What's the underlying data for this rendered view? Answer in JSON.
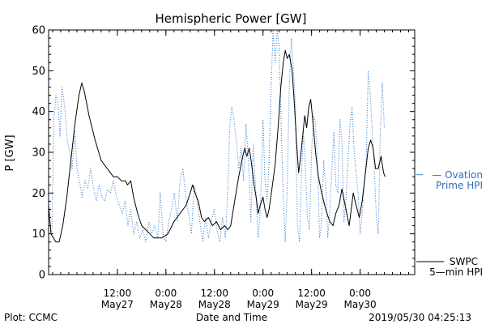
{
  "chart_data": {
    "type": "line",
    "title": "Hemispheric Power [GW]",
    "ylabel": "P [GW]",
    "xlabel": "Date and Time",
    "ylim": [
      0,
      60
    ],
    "xlim_hours": [
      0,
      90.5
    ],
    "x_unit": "hours since 2019/05/26 19:00 UT",
    "yticks": [
      0,
      10,
      20,
      30,
      40,
      50,
      60
    ],
    "xticks": [
      {
        "x": 17,
        "time": "12:00",
        "date": "May27"
      },
      {
        "x": 29,
        "time": "0:00",
        "date": "May28"
      },
      {
        "x": 41,
        "time": "12:00",
        "date": "May28"
      },
      {
        "x": 53,
        "time": "0:00",
        "date": "May29"
      },
      {
        "x": 65,
        "time": "12:00",
        "date": "May29"
      },
      {
        "x": 77,
        "time": "0:00",
        "date": "May30"
      }
    ],
    "series": [
      {
        "name": "SWPC 5-min HPI",
        "style": "solid",
        "color": "#000000",
        "points": [
          [
            0,
            17
          ],
          [
            0.6,
            10
          ],
          [
            1.2,
            9
          ],
          [
            1.8,
            8
          ],
          [
            2.6,
            8
          ],
          [
            3.5,
            12
          ],
          [
            4.5,
            19
          ],
          [
            5.5,
            28
          ],
          [
            6.5,
            37
          ],
          [
            7.5,
            44
          ],
          [
            8.2,
            47
          ],
          [
            8.8,
            45
          ],
          [
            10,
            39
          ],
          [
            11.5,
            33
          ],
          [
            13,
            28
          ],
          [
            14.5,
            26
          ],
          [
            16,
            24
          ],
          [
            17,
            24
          ],
          [
            18,
            23
          ],
          [
            19,
            23
          ],
          [
            19.5,
            22
          ],
          [
            20.3,
            23
          ],
          [
            21,
            19
          ],
          [
            22,
            15
          ],
          [
            23,
            12
          ],
          [
            24,
            11
          ],
          [
            25,
            10
          ],
          [
            26,
            9
          ],
          [
            28,
            9
          ],
          [
            29.5,
            10
          ],
          [
            31,
            13
          ],
          [
            32.5,
            15
          ],
          [
            34,
            17
          ],
          [
            35,
            20
          ],
          [
            35.6,
            22
          ],
          [
            36.2,
            20
          ],
          [
            37,
            18
          ],
          [
            37.8,
            14
          ],
          [
            38.5,
            13
          ],
          [
            39.5,
            14
          ],
          [
            40.5,
            12
          ],
          [
            41.5,
            13
          ],
          [
            42.5,
            11
          ],
          [
            43.5,
            12
          ],
          [
            44.3,
            11
          ],
          [
            45,
            12
          ],
          [
            46,
            18
          ],
          [
            47,
            24
          ],
          [
            48,
            29
          ],
          [
            48.5,
            31
          ],
          [
            49,
            29
          ],
          [
            49.6,
            31
          ],
          [
            50.2,
            27
          ],
          [
            50.8,
            22
          ],
          [
            51.3,
            19
          ],
          [
            51.8,
            15
          ],
          [
            52.3,
            17
          ],
          [
            53,
            19
          ],
          [
            53.5,
            16
          ],
          [
            54,
            14
          ],
          [
            54.5,
            16
          ],
          [
            55.2,
            21
          ],
          [
            56,
            27
          ],
          [
            56.8,
            37
          ],
          [
            57.4,
            46
          ],
          [
            58,
            52
          ],
          [
            58.5,
            55
          ],
          [
            59,
            53
          ],
          [
            59.5,
            54
          ],
          [
            60.2,
            50
          ],
          [
            60.8,
            41
          ],
          [
            61.3,
            32
          ],
          [
            61.8,
            25
          ],
          [
            62.3,
            29
          ],
          [
            62.8,
            34
          ],
          [
            63.3,
            39
          ],
          [
            63.8,
            36
          ],
          [
            64.3,
            41
          ],
          [
            64.8,
            43
          ],
          [
            65.3,
            38
          ],
          [
            66,
            30
          ],
          [
            66.7,
            24
          ],
          [
            67.5,
            20
          ],
          [
            68.5,
            16
          ],
          [
            69.5,
            13
          ],
          [
            70.3,
            12
          ],
          [
            71,
            15
          ],
          [
            71.8,
            17
          ],
          [
            72.5,
            21
          ],
          [
            73.1,
            18
          ],
          [
            73.7,
            15
          ],
          [
            74.3,
            12
          ],
          [
            74.8,
            16
          ],
          [
            75.3,
            20
          ],
          [
            76,
            17
          ],
          [
            76.8,
            14
          ],
          [
            77.5,
            18
          ],
          [
            78.2,
            24
          ],
          [
            79,
            31
          ],
          [
            79.6,
            33
          ],
          [
            80.2,
            31
          ],
          [
            80.8,
            26
          ],
          [
            81.5,
            26
          ],
          [
            82.2,
            29
          ],
          [
            82.8,
            25
          ],
          [
            83.2,
            24
          ]
        ]
      },
      {
        "name": "Ovation Prime HPI",
        "style": "dotted",
        "color": "#3a7fd0",
        "points": [
          [
            0.8,
            10
          ],
          [
            1.3,
            38
          ],
          [
            1.8,
            44
          ],
          [
            2.3,
            42
          ],
          [
            2.8,
            34
          ],
          [
            3.3,
            46
          ],
          [
            4,
            41
          ],
          [
            4.6,
            33
          ],
          [
            5.2,
            30
          ],
          [
            5.8,
            26
          ],
          [
            6.5,
            35
          ],
          [
            7,
            26
          ],
          [
            7.6,
            23
          ],
          [
            8.3,
            19
          ],
          [
            9,
            23
          ],
          [
            9.7,
            21
          ],
          [
            10.4,
            26
          ],
          [
            11,
            22
          ],
          [
            11.8,
            18
          ],
          [
            12.5,
            22
          ],
          [
            13.2,
            19
          ],
          [
            13.9,
            18
          ],
          [
            14.6,
            21
          ],
          [
            15.3,
            20
          ],
          [
            16,
            23
          ],
          [
            16.8,
            19
          ],
          [
            17.5,
            17
          ],
          [
            18.2,
            15
          ],
          [
            18.9,
            18
          ],
          [
            19.6,
            12
          ],
          [
            20.3,
            16
          ],
          [
            21,
            10
          ],
          [
            21.8,
            13
          ],
          [
            22.5,
            9
          ],
          [
            23.3,
            11
          ],
          [
            24,
            8
          ],
          [
            24.8,
            13
          ],
          [
            25.5,
            10
          ],
          [
            26.2,
            12
          ],
          [
            27,
            9
          ],
          [
            27.6,
            20
          ],
          [
            28.3,
            10
          ],
          [
            29,
            8
          ],
          [
            29.7,
            13
          ],
          [
            30.4,
            16
          ],
          [
            31.1,
            20
          ],
          [
            31.8,
            13
          ],
          [
            32.5,
            23
          ],
          [
            33.2,
            26
          ],
          [
            33.9,
            19
          ],
          [
            34.6,
            15
          ],
          [
            35.3,
            10
          ],
          [
            36,
            22
          ],
          [
            36.7,
            18
          ],
          [
            37.4,
            13
          ],
          [
            38.1,
            8
          ],
          [
            38.8,
            14
          ],
          [
            39.5,
            9
          ],
          [
            40.2,
            13
          ],
          [
            40.9,
            16
          ],
          [
            41.6,
            11
          ],
          [
            42.3,
            8
          ],
          [
            43,
            14
          ],
          [
            43.7,
            9
          ],
          [
            44.3,
            21
          ],
          [
            44.8,
            37
          ],
          [
            45.3,
            41
          ],
          [
            45.8,
            38
          ],
          [
            46.4,
            33
          ],
          [
            47,
            26
          ],
          [
            47.6,
            31
          ],
          [
            48.2,
            23
          ],
          [
            48.8,
            37
          ],
          [
            49.4,
            28
          ],
          [
            50,
            13
          ],
          [
            50.6,
            32
          ],
          [
            51.2,
            21
          ],
          [
            51.8,
            9
          ],
          [
            52.4,
            17
          ],
          [
            53,
            38
          ],
          [
            53.5,
            23
          ],
          [
            54,
            18
          ],
          [
            54.5,
            28
          ],
          [
            55,
            46
          ],
          [
            55.5,
            60
          ],
          [
            56,
            52
          ],
          [
            56.5,
            60
          ],
          [
            57,
            56
          ],
          [
            57.5,
            36
          ],
          [
            58,
            19
          ],
          [
            58.5,
            8
          ],
          [
            59,
            22
          ],
          [
            59.5,
            46
          ],
          [
            60,
            58
          ],
          [
            60.5,
            50
          ],
          [
            61,
            42
          ],
          [
            61.5,
            12
          ],
          [
            62,
            8
          ],
          [
            62.5,
            25
          ],
          [
            63,
            35
          ],
          [
            63.5,
            26
          ],
          [
            64,
            14
          ],
          [
            64.5,
            11
          ],
          [
            65,
            30
          ],
          [
            65.5,
            39
          ],
          [
            66,
            37
          ],
          [
            66.5,
            27
          ],
          [
            67,
            9
          ],
          [
            67.5,
            13
          ],
          [
            68,
            28
          ],
          [
            68.5,
            22
          ],
          [
            69,
            9
          ],
          [
            69.5,
            15
          ],
          [
            70,
            25
          ],
          [
            70.5,
            35
          ],
          [
            71,
            22
          ],
          [
            71.5,
            20
          ],
          [
            72,
            38
          ],
          [
            72.5,
            33
          ],
          [
            73,
            13
          ],
          [
            73.5,
            18
          ],
          [
            74,
            28
          ],
          [
            74.5,
            37
          ],
          [
            75,
            41
          ],
          [
            75.5,
            31
          ],
          [
            76,
            25
          ],
          [
            76.5,
            20
          ],
          [
            77,
            10
          ],
          [
            77.5,
            15
          ],
          [
            78,
            22
          ],
          [
            78.5,
            28
          ],
          [
            79,
            50
          ],
          [
            79.5,
            44
          ],
          [
            80,
            35
          ],
          [
            80.5,
            26
          ],
          [
            81,
            14
          ],
          [
            81.5,
            10
          ],
          [
            82,
            35
          ],
          [
            82.5,
            47
          ],
          [
            83,
            36
          ]
        ]
      }
    ],
    "legend": {
      "placement": "right",
      "ovation_line1": "— Ovation",
      "ovation_line2": "Prime HPI",
      "swpc_line1": "SWPC",
      "swpc_line2": "5—min HPI"
    },
    "footer": {
      "left": "Plot: CCMC",
      "center": "Date and Time",
      "right": "2019/05/30 04:25:13"
    },
    "colors": {
      "swpc": "#000000",
      "ovation": "#3a7fd0"
    }
  }
}
